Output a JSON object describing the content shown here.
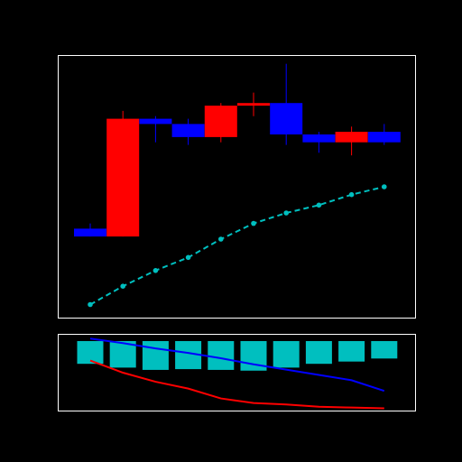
{
  "colors": {
    "background": "#000000",
    "frame": "#ffffff",
    "up": "#ff0000",
    "down": "#0000ff",
    "line": "#00bfbf",
    "volume": "#00bfbf",
    "blue_line": "#0000ff",
    "red_line": "#ff0000"
  },
  "chart_data": [
    {
      "type": "candlestick",
      "title": "",
      "xlabel": "",
      "ylabel": "",
      "x": [
        1,
        2,
        3,
        4,
        5,
        6,
        7,
        8,
        9,
        10
      ],
      "ylim": [
        0,
        100
      ],
      "grid": false,
      "candles": [
        {
          "open": 34,
          "high": 36,
          "low": 31,
          "close": 31
        },
        {
          "open": 31,
          "high": 79,
          "low": 31,
          "close": 76
        },
        {
          "open": 76,
          "high": 77,
          "low": 67,
          "close": 74
        },
        {
          "open": 74,
          "high": 76,
          "low": 66,
          "close": 69
        },
        {
          "open": 69,
          "high": 82,
          "low": 67,
          "close": 81
        },
        {
          "open": 81,
          "high": 86,
          "low": 77,
          "close": 82
        },
        {
          "open": 82,
          "high": 97,
          "low": 66,
          "close": 70
        },
        {
          "open": 70,
          "high": 71,
          "low": 63,
          "close": 67
        },
        {
          "open": 67,
          "high": 73,
          "low": 62,
          "close": 71
        },
        {
          "open": 71,
          "high": 74,
          "low": 66,
          "close": 67
        }
      ],
      "line_series": {
        "values": [
          5,
          12,
          18,
          23,
          30,
          36,
          40,
          43,
          47,
          50
        ],
        "style": "dashed",
        "markers": true
      }
    },
    {
      "type": "bar",
      "title": "",
      "xlabel": "",
      "ylabel": "",
      "x": [
        1,
        2,
        3,
        4,
        5,
        6,
        7,
        8,
        9,
        10
      ],
      "ylim": [
        0,
        100
      ],
      "grid": false,
      "values": [
        30,
        35,
        38,
        37,
        38,
        39,
        35,
        30,
        27,
        23
      ],
      "series": [
        {
          "values": [
            95,
            89,
            82,
            76,
            69,
            61,
            54,
            47,
            40,
            26
          ],
          "color": "blue"
        },
        {
          "values": [
            66,
            50,
            38,
            29,
            16,
            10,
            8,
            5,
            4,
            3
          ],
          "color": "red"
        }
      ]
    }
  ]
}
